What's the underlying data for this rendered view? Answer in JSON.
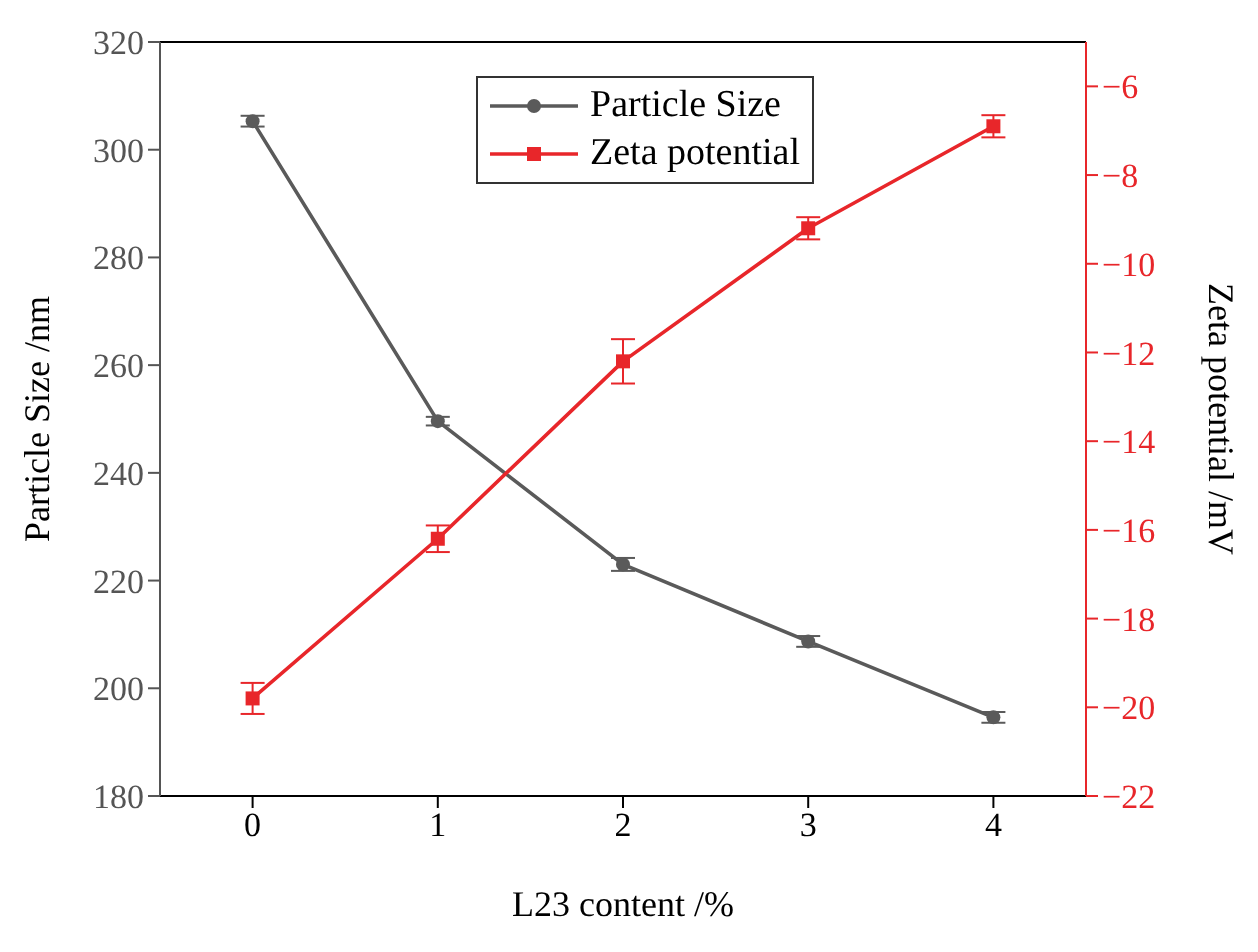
{
  "chart_data": {
    "type": "line",
    "xlabel": "L23 content /%",
    "ylabel": "Particle Size /nm",
    "y2label": "Zeta potential /mV",
    "x": [
      0,
      1,
      2,
      3,
      4
    ],
    "xlim": [
      -0.5,
      4.5
    ],
    "xticks": [
      0,
      1,
      2,
      3,
      4
    ],
    "ylim": [
      180,
      320
    ],
    "yticks": [
      180,
      200,
      220,
      240,
      260,
      280,
      300,
      320
    ],
    "y2lim": [
      -22,
      -5
    ],
    "y2ticks": [
      -22,
      -20,
      -18,
      -16,
      -14,
      -12,
      -10,
      -8,
      -6
    ],
    "series": [
      {
        "name": "Particle Size",
        "color": "#5a5a5a",
        "marker": "circle",
        "values": [
          305.3,
          249.6,
          223.0,
          208.7,
          194.6
        ],
        "errors": [
          1,
          0.8,
          1.2,
          1,
          1
        ]
      },
      {
        "name": "Zeta potential",
        "color": "#e8262a",
        "axis": "y2",
        "marker": "square",
        "values": [
          -19.8,
          -16.2,
          -12.2,
          -9.2,
          -6.9
        ],
        "errors": [
          0.35,
          0.3,
          0.5,
          0.25,
          0.25
        ]
      }
    ],
    "legend": "top",
    "grid": false,
    "line_style": "solid"
  }
}
